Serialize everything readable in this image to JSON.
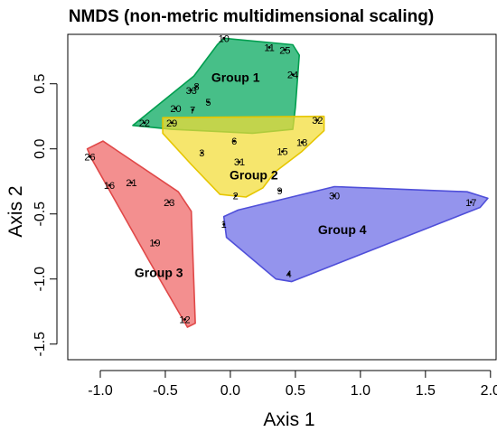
{
  "chart_data": {
    "type": "scatter",
    "title": "NMDS (non-metric multidimensional scaling)",
    "xlabel": "Axis 1",
    "ylabel": "Axis 2",
    "xlim": [
      -1.25,
      2.05
    ],
    "ylim": [
      -1.62,
      0.88
    ],
    "x_ticks": [
      "-1.0",
      "-0.5",
      "0.0",
      "0.5",
      "1.0",
      "1.5",
      "2.0"
    ],
    "y_ticks": [
      "0.5",
      "0.0",
      "-0.5",
      "-1.0",
      "-1.5"
    ],
    "grid": false,
    "groups": [
      {
        "name": "Group 1",
        "fill": "#00A65A",
        "stroke": "#009E4F",
        "label_pos": [
          0.04,
          0.55
        ],
        "hull": [
          [
            -0.05,
            0.85
          ],
          [
            0.48,
            0.8
          ],
          [
            0.53,
            0.72
          ],
          [
            0.5,
            0.32
          ],
          [
            0.48,
            0.15
          ],
          [
            0.17,
            0.12
          ],
          [
            -0.45,
            0.15
          ],
          [
            -0.75,
            0.18
          ],
          [
            -0.28,
            0.56
          ],
          [
            -0.1,
            0.8
          ]
        ]
      },
      {
        "name": "Group 2",
        "fill": "#F2DC34",
        "stroke": "#E6C600",
        "label_pos": [
          0.18,
          -0.2
        ],
        "hull": [
          [
            -0.52,
            0.24
          ],
          [
            0.72,
            0.25
          ],
          [
            0.72,
            0.14
          ],
          [
            0.55,
            -0.02
          ],
          [
            0.34,
            -0.18
          ],
          [
            0.25,
            -0.3
          ],
          [
            0.12,
            -0.37
          ],
          [
            -0.08,
            -0.35
          ],
          [
            -0.3,
            -0.12
          ],
          [
            -0.52,
            0.12
          ]
        ]
      },
      {
        "name": "Group 3",
        "fill": "#EF6464",
        "stroke": "#E04848",
        "label_pos": [
          -0.55,
          -0.95
        ],
        "hull": [
          [
            -1.1,
            0.0
          ],
          [
            -0.98,
            0.06
          ],
          [
            -0.4,
            -0.33
          ],
          [
            -0.3,
            -0.48
          ],
          [
            -0.27,
            -1.34
          ],
          [
            -0.33,
            -1.37
          ],
          [
            -0.63,
            -0.85
          ],
          [
            -1.07,
            -0.07
          ]
        ]
      },
      {
        "name": "Group 4",
        "fill": "#6B6BE6",
        "stroke": "#4F4FD9",
        "label_pos": [
          0.86,
          -0.62
        ],
        "hull": [
          [
            -0.03,
            -0.68
          ],
          [
            -0.05,
            -0.52
          ],
          [
            0.06,
            -0.47
          ],
          [
            0.8,
            -0.29
          ],
          [
            1.82,
            -0.33
          ],
          [
            1.98,
            -0.38
          ],
          [
            1.92,
            -0.45
          ],
          [
            0.47,
            -1.02
          ],
          [
            0.35,
            -1.0
          ]
        ]
      }
    ],
    "points": [
      {
        "label": "10",
        "x": -0.05,
        "y": 0.85
      },
      {
        "label": "11",
        "x": 0.3,
        "y": 0.78
      },
      {
        "label": "25",
        "x": 0.42,
        "y": 0.76
      },
      {
        "label": "24",
        "x": 0.48,
        "y": 0.57
      },
      {
        "label": "33",
        "x": -0.3,
        "y": 0.45
      },
      {
        "label": "8",
        "x": -0.26,
        "y": 0.48
      },
      {
        "label": "5",
        "x": -0.17,
        "y": 0.36
      },
      {
        "label": "20",
        "x": -0.42,
        "y": 0.31
      },
      {
        "label": "7",
        "x": -0.29,
        "y": 0.3
      },
      {
        "label": "22",
        "x": -0.66,
        "y": 0.2
      },
      {
        "label": "29",
        "x": -0.45,
        "y": 0.2
      },
      {
        "label": "32",
        "x": 0.67,
        "y": 0.22
      },
      {
        "label": "6",
        "x": 0.03,
        "y": 0.06
      },
      {
        "label": "3",
        "x": -0.22,
        "y": -0.03
      },
      {
        "label": "31",
        "x": 0.07,
        "y": -0.1
      },
      {
        "label": "18",
        "x": 0.55,
        "y": 0.05
      },
      {
        "label": "15",
        "x": 0.4,
        "y": -0.02
      },
      {
        "label": "2",
        "x": 0.04,
        "y": -0.36
      },
      {
        "label": "9",
        "x": 0.38,
        "y": -0.32
      },
      {
        "label": "26",
        "x": -1.08,
        "y": -0.06
      },
      {
        "label": "16",
        "x": -0.93,
        "y": -0.28
      },
      {
        "label": "21",
        "x": -0.76,
        "y": -0.26
      },
      {
        "label": "23",
        "x": -0.47,
        "y": -0.41
      },
      {
        "label": "19",
        "x": -0.58,
        "y": -0.72
      },
      {
        "label": "12",
        "x": -0.35,
        "y": -1.31
      },
      {
        "label": "1",
        "x": -0.05,
        "y": -0.58
      },
      {
        "label": "30",
        "x": 0.8,
        "y": -0.36
      },
      {
        "label": "17",
        "x": 1.85,
        "y": -0.41
      },
      {
        "label": "4",
        "x": 0.45,
        "y": -0.96
      }
    ]
  }
}
